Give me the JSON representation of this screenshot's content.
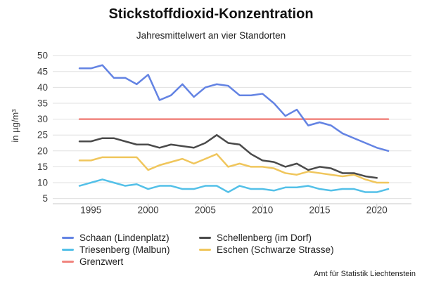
{
  "header": {
    "title": "Stickstoffdioxid-Konzentration",
    "subtitle": "Jahresmittelwert an vier Standorten"
  },
  "source": "Amt für Statistik Liechtenstein",
  "colors": {
    "schaan_blue": "#6383e3",
    "schellenberg_gray": "#4a4a4a",
    "triesenberg_cyan": "#53c0e8",
    "eschen_yellow": "#f0c65c",
    "grenzwert_red": "#f0847e",
    "gridline": "#e0e0e0",
    "axis": "#c9c9c9",
    "tick_text": "#3a3a3a"
  },
  "legend": {
    "columns": [
      [
        {
          "label": "Schaan (Lindenplatz)",
          "color": "#6383e3"
        },
        {
          "label": "Triesenberg (Malbun)",
          "color": "#53c0e8"
        },
        {
          "label": "Grenzwert",
          "color": "#f0847e"
        }
      ],
      [
        {
          "label": "Schellenberg (im Dorf)",
          "color": "#4a4a4a"
        },
        {
          "label": "Eschen (Schwarze Strasse)",
          "color": "#f0c65c"
        }
      ]
    ]
  },
  "chart_data": {
    "type": "line",
    "title": "Stickstoffdioxid-Konzentration",
    "subtitle": "Jahresmittelwert an vier Standorten",
    "ylabel": "in µg/m³",
    "xlim": [
      1994,
      2021
    ],
    "ylim": [
      5,
      50
    ],
    "grid": "horizontal",
    "legend_position": "bottom",
    "yticks": [
      5,
      10,
      15,
      20,
      25,
      30,
      35,
      40,
      45,
      50
    ],
    "xticks": [
      1995,
      2000,
      2005,
      2010,
      2015,
      2020
    ],
    "x": [
      1994,
      1995,
      1996,
      1997,
      1998,
      1999,
      2000,
      2001,
      2002,
      2003,
      2004,
      2005,
      2006,
      2007,
      2008,
      2009,
      2010,
      2011,
      2012,
      2013,
      2014,
      2015,
      2016,
      2017,
      2018,
      2019,
      2020,
      2021
    ],
    "series": [
      {
        "name": "Schaan (Lindenplatz)",
        "color": "#6383e3",
        "values": [
          46,
          46,
          47,
          43,
          43,
          41,
          44,
          36,
          37.5,
          41,
          37,
          40,
          41,
          40.5,
          37.5,
          37.5,
          38,
          35,
          31,
          33,
          28,
          29,
          28,
          25.5,
          24,
          22.5,
          21,
          20
        ]
      },
      {
        "name": "Schellenberg (im Dorf)",
        "color": "#4a4a4a",
        "values": [
          23,
          23,
          24,
          24,
          23,
          22,
          22,
          21,
          22,
          21.5,
          21,
          22.5,
          25,
          22.5,
          22,
          19,
          17,
          16.5,
          15,
          16,
          14,
          15,
          14.5,
          13,
          13,
          12,
          11.5,
          null
        ]
      },
      {
        "name": "Triesenberg (Malbun)",
        "color": "#53c0e8",
        "values": [
          9,
          10,
          11,
          10,
          9,
          9.5,
          8,
          9,
          9,
          8,
          8,
          9,
          9,
          7,
          9,
          8,
          8,
          7.5,
          8.5,
          8.5,
          9,
          8,
          7.5,
          8,
          8,
          7,
          7,
          8
        ]
      },
      {
        "name": "Eschen (Schwarze Strasse)",
        "color": "#f0c65c",
        "values": [
          17,
          17,
          18,
          18,
          18,
          18,
          14,
          15.5,
          16.5,
          17.5,
          16,
          17.5,
          19,
          15,
          16,
          15,
          15,
          14.5,
          13,
          12.5,
          13.5,
          13,
          12.5,
          12,
          12.5,
          11,
          10,
          10
        ]
      },
      {
        "name": "Grenzwert",
        "color": "#f0847e",
        "constant": 30
      }
    ]
  }
}
